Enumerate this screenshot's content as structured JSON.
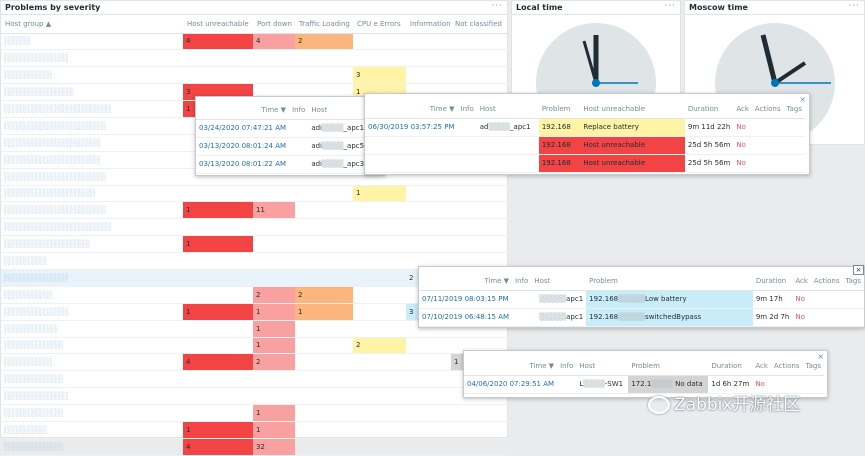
{
  "severity_widget": {
    "title": "Problems by severity",
    "menu": "···",
    "headers": [
      "Host group ▲",
      "Host unreachable",
      "Port down",
      "Traffic Loading",
      "CPU e Errors",
      "Information",
      "Not classified"
    ],
    "rows": [
      {
        "host": "░░░░░",
        "cells": [
          "4",
          "4",
          "2",
          "",
          "",
          ""
        ]
      },
      {
        "host": "░░░░░░░░░░░░",
        "cells": [
          "",
          "",
          "",
          "",
          "",
          ""
        ]
      },
      {
        "host": "░░░░░░░░░",
        "cells": [
          "",
          "",
          "",
          "3",
          "",
          ""
        ]
      },
      {
        "host": "░░░░░░░░░░░░░",
        "cells": [
          "3",
          "",
          "",
          "1",
          "",
          ""
        ]
      },
      {
        "host": "░░░░░░░░░░░░░░░░░░░░",
        "cells": [
          "1",
          "",
          "",
          "",
          "",
          ""
        ]
      },
      {
        "host": "░░░░░░░░░░░░░░░░░░░",
        "cells": [
          "",
          "",
          "",
          "",
          "",
          ""
        ]
      },
      {
        "host": "░░░░░░░░░░░░░░░░░░",
        "cells": [
          "",
          "",
          "",
          "",
          "",
          ""
        ]
      },
      {
        "host": "░░░░░░░░░░░░░░░░░░",
        "cells": [
          "",
          "",
          "",
          "",
          "",
          ""
        ]
      },
      {
        "host": "░░░░░░░░░░░░░░░░░░░",
        "cells": [
          "",
          "",
          "",
          "",
          "",
          ""
        ]
      },
      {
        "host": "░░░░░░░░░░░░░░░░░",
        "cells": [
          "",
          "",
          "",
          "1",
          "",
          ""
        ]
      },
      {
        "host": "░░░░░░░░░░░░░░░░░░░",
        "cells": [
          "1",
          "11",
          "",
          "",
          "",
          ""
        ]
      },
      {
        "host": "░░░░░░░░░░░░░░░░░░░░",
        "cells": [
          "",
          "",
          "",
          "",
          "",
          ""
        ]
      },
      {
        "host": "░░░░░░░░░░░░░░░░",
        "cells": [
          "1",
          "",
          "",
          "",
          "",
          ""
        ]
      },
      {
        "host": "░░░░░░░░",
        "cells": [
          "",
          "",
          "",
          "",
          "",
          ""
        ]
      },
      {
        "host": "░░░░░░░░░░░░",
        "cells": [
          "",
          "",
          "",
          "",
          "2",
          ""
        ]
      },
      {
        "host": "░░░░░░░░░",
        "cells": [
          "",
          "2",
          "2",
          "",
          "",
          ""
        ]
      },
      {
        "host": "░░░░░░░░░░░░",
        "cells": [
          "1",
          "1",
          "1",
          "",
          "3",
          ""
        ]
      },
      {
        "host": "░░░░░░░░░░",
        "cells": [
          "",
          "1",
          "",
          "",
          "",
          ""
        ]
      },
      {
        "host": "░░░░░░░░░░░",
        "cells": [
          "",
          "1",
          "",
          "2",
          "",
          ""
        ]
      },
      {
        "host": "░░░░░░░░░",
        "cells": [
          "4",
          "2",
          "",
          "",
          "",
          "1"
        ]
      },
      {
        "host": "░░░░░░░░░░░",
        "cells": [
          "",
          "",
          "",
          "",
          "",
          ""
        ]
      },
      {
        "host": "░░░░░░░░░░░░",
        "cells": [
          "",
          "",
          "",
          "",
          "",
          ""
        ]
      },
      {
        "host": "░░░░░░░░░░░",
        "cells": [
          "",
          "1",
          "",
          "",
          "",
          ""
        ]
      },
      {
        "host": "░░░░░░░░",
        "cells": [
          "1",
          "1",
          "",
          "",
          "",
          ""
        ]
      },
      {
        "host": "░░░░░░░░░░░",
        "cells": [
          "4",
          "32",
          "",
          "",
          "",
          ""
        ]
      }
    ]
  },
  "local_clock": {
    "title": "Local time",
    "menu": "···"
  },
  "moscow_clock": {
    "title": "Moscow time",
    "menu": "···"
  },
  "popup1": {
    "headers": [
      "Time ▼",
      "Info",
      "Host"
    ],
    "rows": [
      {
        "time": "03/24/2020 07:47:21 AM",
        "host_a": "adi",
        "host_b": "_apc1"
      },
      {
        "time": "03/13/2020 08:01:24 AM",
        "host_a": "adi",
        "host_b": "_apc5"
      },
      {
        "time": "03/13/2020 08:01:22 AM",
        "host_a": "adi",
        "host_b": "_apc3"
      }
    ]
  },
  "popup2": {
    "close": "×",
    "headers": [
      "Time ▼",
      "Info",
      "Host",
      "Problem",
      "Host unreachable",
      "Duration",
      "Ack",
      "Actions",
      "Tags"
    ],
    "rows": [
      {
        "time": "06/30/2019 03:57:25 PM",
        "host_a": "ad",
        "host_b": "_apc1",
        "ip": "192.168",
        "problem": "Replace battery",
        "duration": "9m 11d 22h",
        "ack": "No"
      },
      {
        "time": "",
        "host_a": "",
        "host_b": "",
        "ip": "192.168",
        "problem": "Host unreachable",
        "duration": "25d 5h 56m",
        "ack": "No"
      },
      {
        "time": "",
        "host_a": "",
        "host_b": "",
        "ip": "192.168",
        "problem": "Host unreachable",
        "duration": "25d 5h 56m",
        "ack": "No"
      }
    ]
  },
  "popup3": {
    "close": "×",
    "headers": [
      "Time ▼",
      "Info",
      "Host",
      "Problem",
      "Duration",
      "Ack",
      "Actions",
      "Tags"
    ],
    "rows": [
      {
        "time": "07/11/2019 08:03:15 PM",
        "host": "apc1",
        "ip": "192.168",
        "problem": "Low battery",
        "duration": "9m 17h",
        "ack": "No"
      },
      {
        "time": "07/10/2019 06:48:15 AM",
        "host": "apc1",
        "ip": "192.168",
        "problem": "switchedBypass",
        "duration": "9m 2d 7h",
        "ack": "No"
      }
    ]
  },
  "popup4": {
    "close": "×",
    "headers": [
      "Time ▼",
      "Info",
      "Host",
      "Problem",
      "Duration",
      "Ack",
      "Actions",
      "Tags"
    ],
    "rows": [
      {
        "time": "04/06/2020 07:29:51 AM",
        "host_a": "L",
        "host_b": "-SW1",
        "ip": "172.1",
        "problem": "No data",
        "duration": "1d 6h 27m",
        "ack": "No"
      }
    ]
  },
  "side_close": "×",
  "watermark": "Zabbix开源社区"
}
